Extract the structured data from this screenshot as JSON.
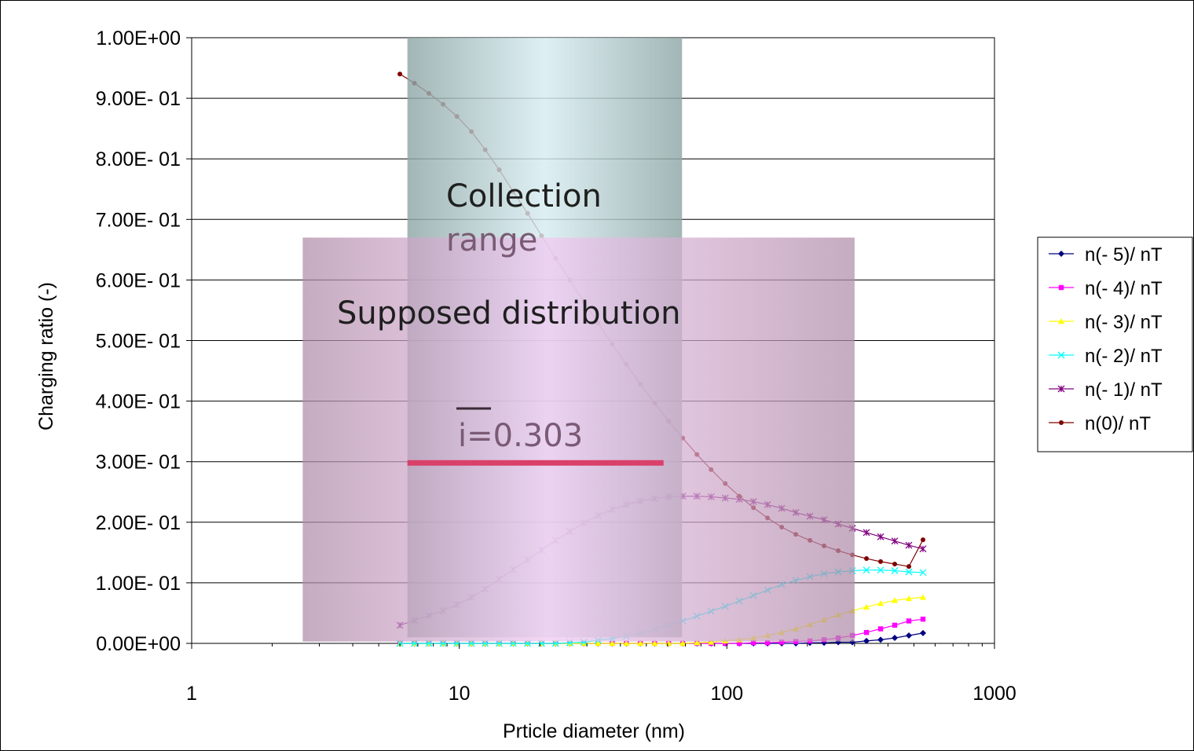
{
  "chart_data": {
    "type": "line",
    "xscale": "log",
    "xlim": [
      1,
      1000
    ],
    "ylim": [
      0,
      1.0
    ],
    "x_ticks": [
      1,
      10,
      100,
      1000
    ],
    "x_tick_labels": [
      "1",
      "10",
      "100",
      "1000"
    ],
    "y_ticks": [
      0,
      0.1,
      0.2,
      0.3,
      0.4,
      0.5,
      0.6,
      0.7,
      0.8,
      0.9,
      1.0
    ],
    "y_tick_labels": [
      "0.00E+00",
      "1.00E- 01",
      "2.00E- 01",
      "3.00E- 01",
      "4.00E- 01",
      "5.00E- 01",
      "6.00E- 01",
      "7.00E- 01",
      "8.00E- 01",
      "9.00E- 01",
      "1.00E+00"
    ],
    "xlabel": "Prticle diameter (nm)",
    "ylabel": "Charging ratio (-)",
    "grid": "horizontal",
    "legend_position": "right",
    "x": [
      6.0,
      6.8,
      7.7,
      8.7,
      9.8,
      11.1,
      12.5,
      14.1,
      15.9,
      18.0,
      20.3,
      22.9,
      25.9,
      29.2,
      33.0,
      37.3,
      42.1,
      47.5,
      53.7,
      60.6,
      68.4,
      77.3,
      87.3,
      98.6,
      111.3,
      125.7,
      141.9,
      160.3,
      181.0,
      204.4,
      230.8,
      260.7,
      294.4,
      332.4,
      375.4,
      423.9,
      478.7,
      540.6
    ],
    "series": [
      {
        "name": "n(- 5)/ nT",
        "color": "#000080",
        "marker": "diamond",
        "values": [
          0,
          0,
          0,
          0,
          0,
          0,
          0,
          0,
          0,
          0,
          0,
          0,
          0,
          0,
          0,
          0,
          0,
          0,
          0,
          0,
          0,
          0,
          0,
          0,
          0,
          0,
          0,
          0,
          0,
          0.001,
          0.001,
          0.002,
          0.002,
          0.004,
          0.006,
          0.009,
          0.013,
          0.017
        ]
      },
      {
        "name": "n(- 4)/ nT",
        "color": "#ff00ff",
        "marker": "square",
        "values": [
          0,
          0,
          0,
          0,
          0,
          0,
          0,
          0,
          0,
          0,
          0,
          0,
          0,
          0,
          0,
          0,
          0,
          0,
          0,
          0,
          0,
          0,
          0,
          0,
          0,
          0.001,
          0.001,
          0.002,
          0.003,
          0.004,
          0.006,
          0.009,
          0.013,
          0.018,
          0.024,
          0.03,
          0.037,
          0.04
        ]
      },
      {
        "name": "n(- 3)/ nT",
        "color": "#ffff00",
        "marker": "triangle",
        "values": [
          0,
          0,
          0,
          0,
          0,
          0,
          0,
          0,
          0,
          0,
          0,
          0,
          0,
          0,
          0,
          0,
          0,
          0,
          0,
          0,
          0,
          0.001,
          0.002,
          0.004,
          0.006,
          0.009,
          0.013,
          0.018,
          0.024,
          0.031,
          0.039,
          0.047,
          0.054,
          0.06,
          0.066,
          0.071,
          0.074,
          0.076
        ]
      },
      {
        "name": "n(- 2)/ nT",
        "color": "#00ffff",
        "marker": "x",
        "values": [
          0,
          0,
          0,
          0,
          0,
          0,
          0,
          0,
          0,
          0,
          0,
          0,
          0.001,
          0.002,
          0.005,
          0.008,
          0.012,
          0.017,
          0.023,
          0.03,
          0.037,
          0.045,
          0.053,
          0.061,
          0.07,
          0.079,
          0.088,
          0.097,
          0.104,
          0.11,
          0.115,
          0.118,
          0.12,
          0.121,
          0.121,
          0.12,
          0.118,
          0.117
        ]
      },
      {
        "name": "n(- 1)/ nT",
        "color": "#800080",
        "marker": "star",
        "values": [
          0.03,
          0.038,
          0.046,
          0.054,
          0.064,
          0.076,
          0.09,
          0.106,
          0.122,
          0.138,
          0.154,
          0.17,
          0.185,
          0.199,
          0.211,
          0.221,
          0.229,
          0.235,
          0.239,
          0.242,
          0.243,
          0.243,
          0.242,
          0.24,
          0.238,
          0.234,
          0.229,
          0.223,
          0.216,
          0.21,
          0.204,
          0.197,
          0.19,
          0.183,
          0.176,
          0.169,
          0.162,
          0.156
        ]
      },
      {
        "name": "n(0)/ nT",
        "color": "#800000",
        "marker": "circle",
        "values": [
          0.94,
          0.925,
          0.908,
          0.89,
          0.87,
          0.845,
          0.815,
          0.782,
          0.746,
          0.71,
          0.673,
          0.636,
          0.6,
          0.564,
          0.529,
          0.494,
          0.461,
          0.428,
          0.397,
          0.367,
          0.339,
          0.312,
          0.287,
          0.264,
          0.243,
          0.224,
          0.207,
          0.192,
          0.18,
          0.17,
          0.161,
          0.153,
          0.146,
          0.14,
          0.135,
          0.131,
          0.127,
          0.171
        ]
      }
    ],
    "overlays": {
      "collection_box": {
        "x_range": [
          6.4,
          68
        ],
        "y_range": [
          0.01,
          1.0
        ],
        "label": "Collection\nrange"
      },
      "distribution_box": {
        "x_range": [
          2.6,
          300
        ],
        "y_range": [
          0.003,
          0.67
        ],
        "label": "Supposed distribution"
      },
      "mean_line": {
        "x_range": [
          6.4,
          58
        ],
        "y": 0.298,
        "label": "i=0.303"
      }
    }
  }
}
